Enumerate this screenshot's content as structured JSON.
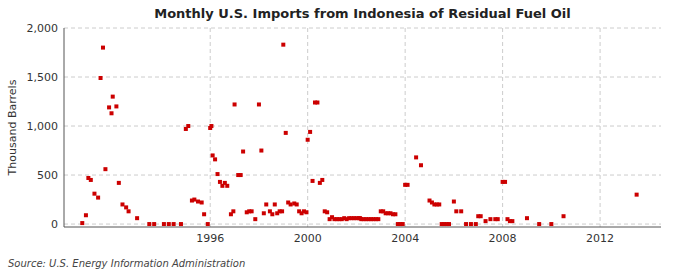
{
  "chart_data": {
    "type": "scatter",
    "title": "Monthly U.S. Imports from Indonesia of Residual Fuel Oil",
    "ylabel": "Thousand Barrels",
    "source": "Source: U.S. Energy Information Administration",
    "color": "#cc0000",
    "marker": "square",
    "grid": true,
    "xlim": [
      1990.0,
      2014.5
    ],
    "ylim": [
      -30,
      2000
    ],
    "xticks": [
      1996,
      2000,
      2004,
      2008,
      2012
    ],
    "yticks": [
      0,
      500,
      {
        "value": 1000,
        "label": "1,000"
      },
      {
        "value": 1500,
        "label": "1,500"
      },
      {
        "value": 2000,
        "label": "2,000"
      }
    ],
    "x": [
      1990.75,
      1990.9,
      1991.0,
      1991.1,
      1991.25,
      1991.4,
      1991.5,
      1991.6,
      1991.7,
      1991.85,
      1991.95,
      1992.0,
      1992.15,
      1992.25,
      1992.4,
      1992.55,
      1992.65,
      1993.0,
      1993.5,
      1993.7,
      1994.1,
      1994.3,
      1994.5,
      1994.8,
      1995.0,
      1995.1,
      1995.25,
      1995.35,
      1995.5,
      1995.65,
      1995.75,
      1995.9,
      1996.0,
      1996.05,
      1996.1,
      1996.2,
      1996.3,
      1996.4,
      1996.5,
      1996.6,
      1996.7,
      1996.85,
      1996.95,
      1997.0,
      1997.15,
      1997.25,
      1997.35,
      1997.5,
      1997.6,
      1997.7,
      1997.85,
      1998.0,
      1998.1,
      1998.2,
      1998.3,
      1998.45,
      1998.55,
      1998.65,
      1998.75,
      1998.85,
      1998.95,
      1999.0,
      1999.1,
      1999.2,
      1999.3,
      1999.45,
      1999.55,
      1999.65,
      1999.75,
      1999.85,
      1999.95,
      2000.0,
      2000.1,
      2000.2,
      2000.3,
      2000.4,
      2000.5,
      2000.6,
      2000.7,
      2000.8,
      2000.9,
      2001.0,
      2001.1,
      2001.2,
      2001.3,
      2001.4,
      2001.5,
      2001.6,
      2001.7,
      2001.8,
      2001.9,
      2002.0,
      2002.1,
      2002.15,
      2002.2,
      2002.3,
      2002.4,
      2002.5,
      2002.6,
      2002.7,
      2002.8,
      2002.9,
      2003.0,
      2003.1,
      2003.2,
      2003.3,
      2003.4,
      2003.5,
      2003.6,
      2003.7,
      2003.8,
      2003.9,
      2004.0,
      2004.1,
      2004.45,
      2004.65,
      2005.0,
      2005.1,
      2005.2,
      2005.3,
      2005.4,
      2005.5,
      2005.6,
      2005.7,
      2005.8,
      2006.0,
      2006.1,
      2006.3,
      2006.5,
      2006.7,
      2006.9,
      2007.0,
      2007.1,
      2007.3,
      2007.5,
      2007.7,
      2007.8,
      2008.0,
      2008.1,
      2008.2,
      2008.3,
      2008.4,
      2009.0,
      2009.5,
      2010.0,
      2010.5,
      2013.5
    ],
    "values": [
      10,
      90,
      470,
      450,
      310,
      270,
      1490,
      1800,
      560,
      1190,
      1130,
      1300,
      1200,
      420,
      200,
      170,
      130,
      60,
      0,
      0,
      0,
      0,
      0,
      0,
      970,
      1000,
      240,
      250,
      230,
      220,
      100,
      0,
      980,
      1000,
      700,
      660,
      510,
      430,
      390,
      420,
      390,
      100,
      130,
      1220,
      500,
      500,
      740,
      120,
      130,
      130,
      50,
      1220,
      750,
      110,
      200,
      130,
      100,
      200,
      110,
      130,
      130,
      1830,
      930,
      220,
      200,
      210,
      200,
      130,
      110,
      130,
      120,
      860,
      940,
      440,
      1240,
      1240,
      420,
      450,
      130,
      120,
      50,
      70,
      50,
      50,
      50,
      50,
      60,
      50,
      60,
      60,
      60,
      60,
      60,
      60,
      50,
      50,
      50,
      50,
      50,
      50,
      50,
      50,
      130,
      130,
      110,
      110,
      110,
      100,
      100,
      0,
      0,
      0,
      400,
      400,
      680,
      600,
      240,
      220,
      200,
      200,
      200,
      0,
      0,
      0,
      0,
      230,
      130,
      130,
      0,
      0,
      0,
      80,
      80,
      30,
      50,
      50,
      50,
      430,
      430,
      50,
      30,
      30,
      60,
      0,
      0,
      80,
      300
    ]
  }
}
